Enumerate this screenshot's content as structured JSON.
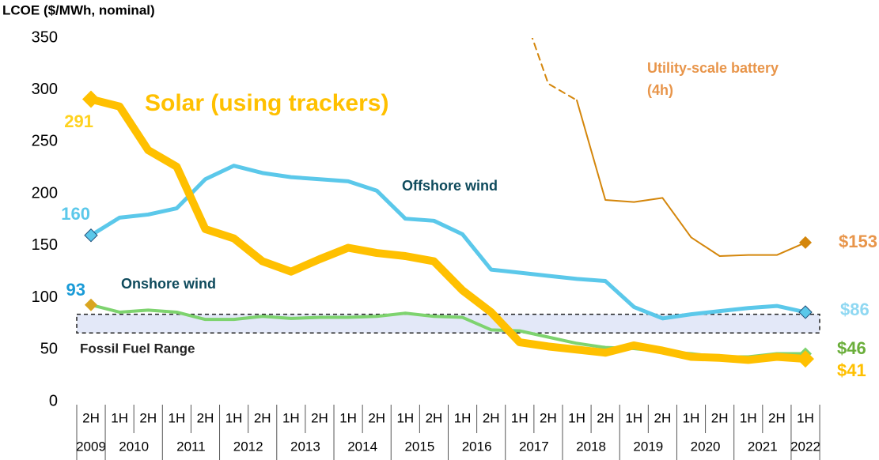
{
  "chart_data": {
    "type": "line",
    "y_axis_label": "LCOE ($/MWh, nominal)",
    "categories": [
      "2H",
      "1H",
      "2H",
      "1H",
      "2H",
      "1H",
      "2H",
      "1H",
      "2H",
      "1H",
      "2H",
      "1H",
      "2H",
      "1H",
      "2H",
      "1H",
      "2H",
      "1H",
      "2H",
      "1H",
      "2H",
      "1H",
      "2H",
      "1H",
      "2H",
      "1H"
    ],
    "year_groups": [
      {
        "label": "2009",
        "count": 1
      },
      {
        "label": "2010",
        "count": 2
      },
      {
        "label": "2011",
        "count": 2
      },
      {
        "label": "2012",
        "count": 2
      },
      {
        "label": "2013",
        "count": 2
      },
      {
        "label": "2014",
        "count": 2
      },
      {
        "label": "2015",
        "count": 2
      },
      {
        "label": "2016",
        "count": 2
      },
      {
        "label": "2017",
        "count": 2
      },
      {
        "label": "2018",
        "count": 2
      },
      {
        "label": "2019",
        "count": 2
      },
      {
        "label": "2020",
        "count": 2
      },
      {
        "label": "2021",
        "count": 2
      },
      {
        "label": "2022",
        "count": 1
      }
    ],
    "ylim": [
      0,
      350
    ],
    "yticks": [
      0,
      50,
      100,
      150,
      200,
      250,
      300,
      350
    ],
    "fossil_range": [
      66,
      84
    ],
    "fossil_range_label": "Fossil Fuel Range",
    "series": [
      {
        "name": "Utility-scale battery (4h)",
        "color": "#D4860B",
        "label_color": "#E8954A",
        "width": 2,
        "dashed_points": 3,
        "values": [
          null,
          null,
          null,
          null,
          null,
          null,
          null,
          null,
          null,
          null,
          null,
          null,
          null,
          null,
          null,
          385,
          306,
          290,
          194,
          192,
          196,
          158,
          140,
          141,
          141,
          153
        ],
        "value_labels": [
          null,
          null,
          null,
          null,
          null,
          null,
          null,
          null,
          null,
          null,
          null,
          null,
          null,
          null,
          null,
          null,
          null,
          null,
          null,
          null,
          null,
          null,
          null,
          null,
          null,
          "$153"
        ]
      },
      {
        "name": "Offshore wind",
        "color": "#5BC8EA",
        "label_color": "#8FD8F2",
        "width": 5,
        "values": [
          160,
          177,
          180,
          186,
          214,
          227,
          220,
          216,
          214,
          212,
          203,
          176,
          174,
          161,
          127,
          124,
          121,
          118,
          116,
          91,
          80,
          84,
          87,
          90,
          92,
          86
        ],
        "value_labels": [
          "160",
          null,
          null,
          null,
          null,
          null,
          null,
          null,
          null,
          null,
          null,
          null,
          null,
          null,
          null,
          null,
          null,
          null,
          null,
          null,
          null,
          null,
          null,
          null,
          null,
          "$86"
        ]
      },
      {
        "name": "Onshore wind",
        "color": "#7ED36F",
        "label_color": "#6AAE3A",
        "width": 4,
        "values": [
          93,
          86,
          88,
          86,
          79,
          79,
          82,
          80,
          81,
          81,
          82,
          85,
          82,
          81,
          69,
          68,
          62,
          56,
          52,
          51,
          48,
          46,
          43,
          43,
          46,
          46
        ],
        "value_labels": [
          "93",
          null,
          null,
          null,
          null,
          null,
          null,
          null,
          null,
          null,
          null,
          null,
          null,
          null,
          null,
          null,
          null,
          null,
          null,
          null,
          null,
          null,
          null,
          null,
          null,
          "$46"
        ]
      },
      {
        "name": "Solar (using trackers)",
        "color": "#FFC000",
        "label_color": "#FFC000",
        "width": 10,
        "values": [
          291,
          284,
          242,
          226,
          166,
          157,
          135,
          125,
          137,
          148,
          143,
          140,
          135,
          107,
          86,
          57,
          53,
          50,
          47,
          54,
          49,
          43,
          42,
          40,
          43,
          41
        ],
        "value_labels": [
          "291",
          null,
          null,
          null,
          null,
          null,
          null,
          null,
          null,
          null,
          null,
          null,
          null,
          null,
          null,
          null,
          null,
          null,
          null,
          null,
          null,
          null,
          null,
          null,
          null,
          "$41"
        ]
      }
    ]
  }
}
